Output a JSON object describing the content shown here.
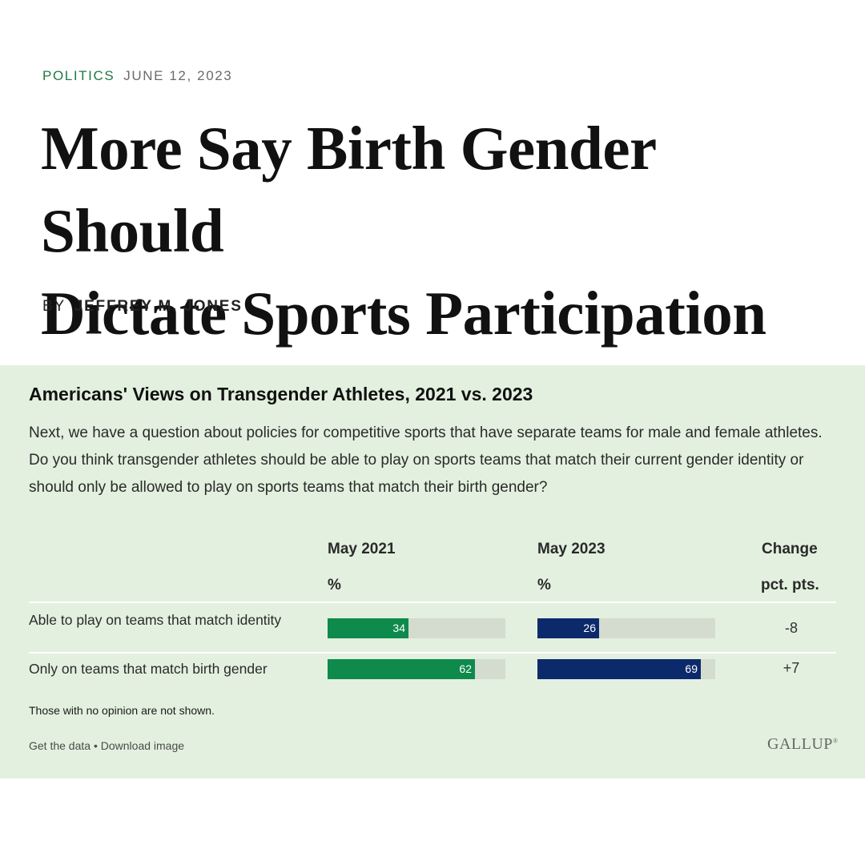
{
  "article": {
    "section": "POLITICS",
    "date": "JUNE 12, 2023",
    "headline_line1": "More Say Birth Gender Should",
    "headline_line2": "Dictate Sports Participation",
    "byline_prefix": "BY",
    "author": "JEFFREY M. JONES"
  },
  "colors": {
    "panel_bg": "#e3f0df",
    "may2021": "#0e8a4c",
    "may2023": "#0c2a6b",
    "track": "#d3dccf",
    "section_green": "#1f7a45"
  },
  "chart_data": {
    "type": "bar",
    "title": "Americans' Views on Transgender Athletes, 2021 vs. 2023",
    "question": "Next, we have a question about policies for competitive sports that have separate teams for male and female athletes. Do you think transgender athletes should be able to play on sports teams that match their current gender identity or should only be allowed to play on sports teams that match their birth gender?",
    "columns": {
      "may2021": "May 2021",
      "may2023": "May 2023",
      "unit": "%",
      "change": "Change",
      "change_unit": "pct. pts."
    },
    "categories": [
      "Able to play on teams that match identity",
      "Only on teams that match birth gender"
    ],
    "series": [
      {
        "name": "May 2021",
        "values": [
          34,
          62
        ]
      },
      {
        "name": "May 2023",
        "values": [
          26,
          69
        ]
      }
    ],
    "change": [
      "-8",
      "+7"
    ],
    "xlim": [
      0,
      75
    ],
    "note": "Those with no opinion are not shown."
  },
  "footer": {
    "get_data": "Get the data",
    "separator": "•",
    "download": "Download image",
    "logo": "GALLUP",
    "logo_mark": "®"
  }
}
